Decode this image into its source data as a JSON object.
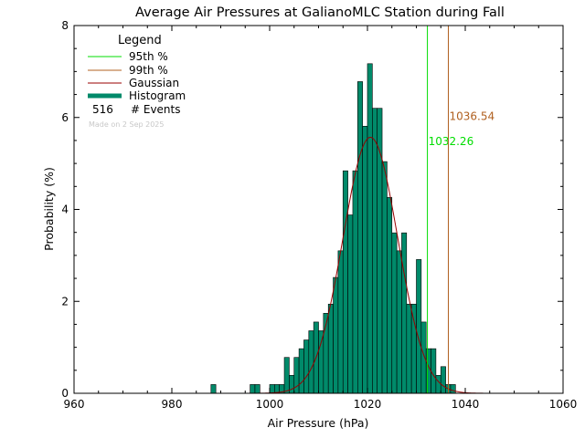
{
  "chart_data": {
    "type": "bar",
    "title": "Average Air Pressures at GalianoMLC Station during Fall",
    "xlabel": "Air Pressure (hPa)",
    "ylabel": "Probability (%)",
    "xlim": [
      960,
      1060
    ],
    "ylim": [
      0,
      8
    ],
    "x_ticks": [
      "960",
      "980",
      "1000",
      "1020",
      "1040",
      "1060"
    ],
    "y_ticks": [
      "0",
      "2",
      "4",
      "6",
      "8"
    ],
    "grid": false,
    "legend": {
      "title": "Legend",
      "placement": "top-left",
      "items": [
        {
          "label": "95th %",
          "color": "#00dd00",
          "kind": "line"
        },
        {
          "label": "99th %",
          "color": "#b06020",
          "kind": "line"
        },
        {
          "label": "Gaussian",
          "color": "#990000",
          "kind": "line"
        },
        {
          "label": "Histogram",
          "color": "#008a6a",
          "kind": "thick"
        }
      ],
      "events_count": "516",
      "events_label": "# Events",
      "made_on": "Made on 2 Sep 2025"
    },
    "bin_width": 1,
    "histogram": {
      "bin_left_edges": [
        988,
        996,
        997,
        1000,
        1001,
        1002,
        1003,
        1004,
        1005,
        1006,
        1007,
        1008,
        1009,
        1010,
        1011,
        1012,
        1013,
        1014,
        1015,
        1016,
        1017,
        1018,
        1019,
        1020,
        1021,
        1022,
        1023,
        1024,
        1025,
        1026,
        1027,
        1028,
        1029,
        1030,
        1031,
        1032,
        1033,
        1034,
        1035,
        1036,
        1037
      ],
      "values": [
        0.19,
        0.19,
        0.19,
        0.19,
        0.19,
        0.19,
        0.78,
        0.39,
        0.78,
        0.97,
        1.16,
        1.36,
        1.55,
        1.36,
        1.74,
        1.94,
        2.52,
        3.1,
        4.84,
        3.88,
        4.84,
        6.78,
        5.81,
        7.17,
        6.2,
        6.2,
        5.04,
        4.26,
        3.49,
        3.1,
        3.49,
        1.94,
        1.94,
        2.91,
        1.55,
        0.97,
        0.97,
        0.39,
        0.58,
        0.19,
        0.19
      ]
    },
    "gaussian": {
      "mean": 1020.6,
      "sigma": 5.6,
      "peak": 5.57,
      "color": "#990000"
    },
    "percentiles": [
      {
        "name": "95th %",
        "value": 1032.26,
        "label": "1032.26",
        "color": "#00dd00"
      },
      {
        "name": "99th %",
        "value": 1036.54,
        "label": "1036.54",
        "color": "#b06020"
      }
    ],
    "colors": {
      "histogram_fill": "#008a6a",
      "axes": "#000000"
    }
  }
}
